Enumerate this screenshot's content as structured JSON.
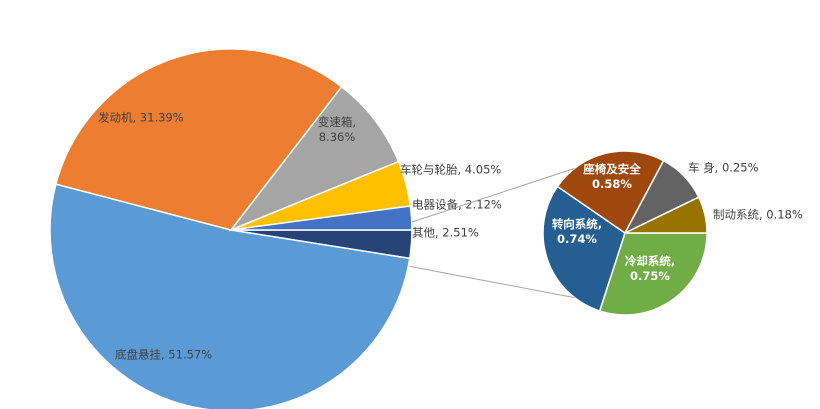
{
  "chart_data": [
    {
      "type": "pie",
      "categories": [
        "其他",
        "底盘悬挂",
        "发动机",
        "变速箱",
        "车轮与轮胎",
        "电器设备"
      ],
      "values": [
        2.51,
        51.57,
        31.39,
        8.36,
        4.05,
        2.12
      ],
      "label_lines": [
        [
          "其他, 2.51%"
        ],
        [
          "底盘悬挂, 51.57%"
        ],
        [
          "发动机, 31.39%"
        ],
        [
          "变速箱,",
          "8.36%"
        ],
        [
          "车轮与轮胎, 4.05%"
        ],
        [
          "电器设备, 2.12%"
        ]
      ],
      "colors": [
        "#264478",
        "#5b9bd5",
        "#ed7d31",
        "#a5a5a5",
        "#ffc000",
        "#4472c4"
      ]
    },
    {
      "type": "pie",
      "categories": [
        "冷却系统",
        "转向系统",
        "座椅及安全",
        "车 身",
        "制动系统"
      ],
      "values": [
        0.75,
        0.74,
        0.58,
        0.25,
        0.18
      ],
      "label_lines": [
        [
          "冷却系统,",
          "0.75%"
        ],
        [
          "转向系统,",
          "0.74%"
        ],
        [
          "座椅及安全",
          "0.58%"
        ],
        [
          "车 身, 0.25%"
        ],
        [
          "制动系统, 0.18%"
        ]
      ],
      "colors": [
        "#70ad47",
        "#255e91",
        "#9e480e",
        "#636363",
        "#997300"
      ]
    }
  ]
}
